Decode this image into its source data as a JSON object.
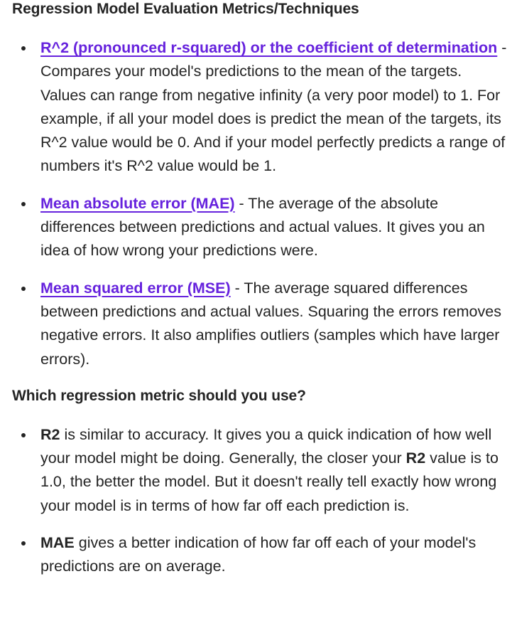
{
  "sections": [
    {
      "heading": "Regression Model Evaluation Metrics/Techniques",
      "items": [
        {
          "link": "R^2 (pronounced r-squared) or the coefficient of determination",
          "text": " - Compares your model's predictions to the mean of the targets. Values can range from negative infinity (a very poor model) to 1. For example, if all your model does is predict the mean of the targets, its R^2 value would be 0. And if your model perfectly predicts a range of numbers it's R^2 value would be 1."
        },
        {
          "link": "Mean absolute error (MAE)",
          "text": " - The average of the absolute differences between predictions and actual values. It gives you an idea of how wrong your predictions were."
        },
        {
          "link": "Mean squared error (MSE)",
          "text": " - The average squared differences between predictions and actual values. Squaring the errors removes negative errors. It also amplifies outliers (samples which have larger errors)."
        }
      ]
    },
    {
      "heading": "Which regression metric should you use?",
      "items": [
        {
          "term": "R2",
          "text_a": " is similar to accuracy. It gives you a quick indication of how well your model might be doing. Generally, the closer your ",
          "term2": "R2",
          "text_b": " value is to 1.0, the better the model. But it doesn't really tell exactly how wrong your model is in terms of how far off each prediction is."
        },
        {
          "term": "MAE",
          "text": " gives a better indication of how far off each of your model's predictions are on average."
        }
      ]
    }
  ],
  "colors": {
    "link": "#6622dd",
    "text": "#242424"
  }
}
